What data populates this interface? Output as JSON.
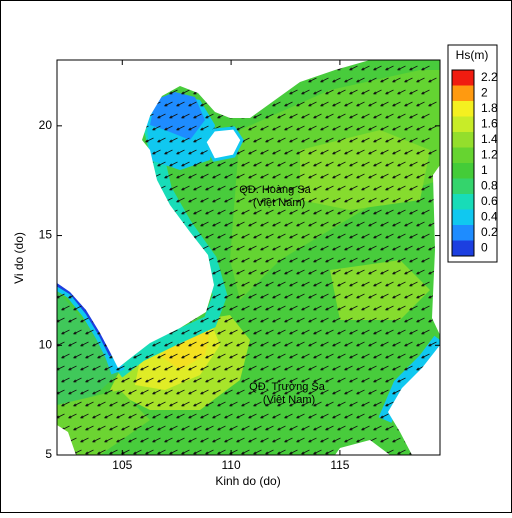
{
  "chart_data": {
    "type": "contour-map",
    "xlabel": "Kinh do (do)",
    "ylabel": "Vi do (do)",
    "xlim": [
      102,
      119.6
    ],
    "ylim": [
      5,
      23
    ],
    "xticks": [
      105,
      110,
      115
    ],
    "yticks": [
      5,
      10,
      15,
      20
    ],
    "annotations": [
      "QĐ. Hoàng Sa",
      "(Việt Nam)",
      "QĐ. Trường Sa",
      "(Việt Nam)"
    ],
    "colorbar": {
      "title": "Hs(m)",
      "ticks": [
        0,
        0.2,
        0.4,
        0.6,
        0.8,
        1,
        1.2,
        1.4,
        1.6,
        1.8,
        2,
        2.2
      ],
      "colors": [
        "#1c3fe0",
        "#1e8cff",
        "#10c8f0",
        "#18dcb8",
        "#34d46c",
        "#44cc38",
        "#66d430",
        "#94de2c",
        "#c8ec28",
        "#f4f020",
        "#ff9a10",
        "#f01c10"
      ]
    }
  }
}
